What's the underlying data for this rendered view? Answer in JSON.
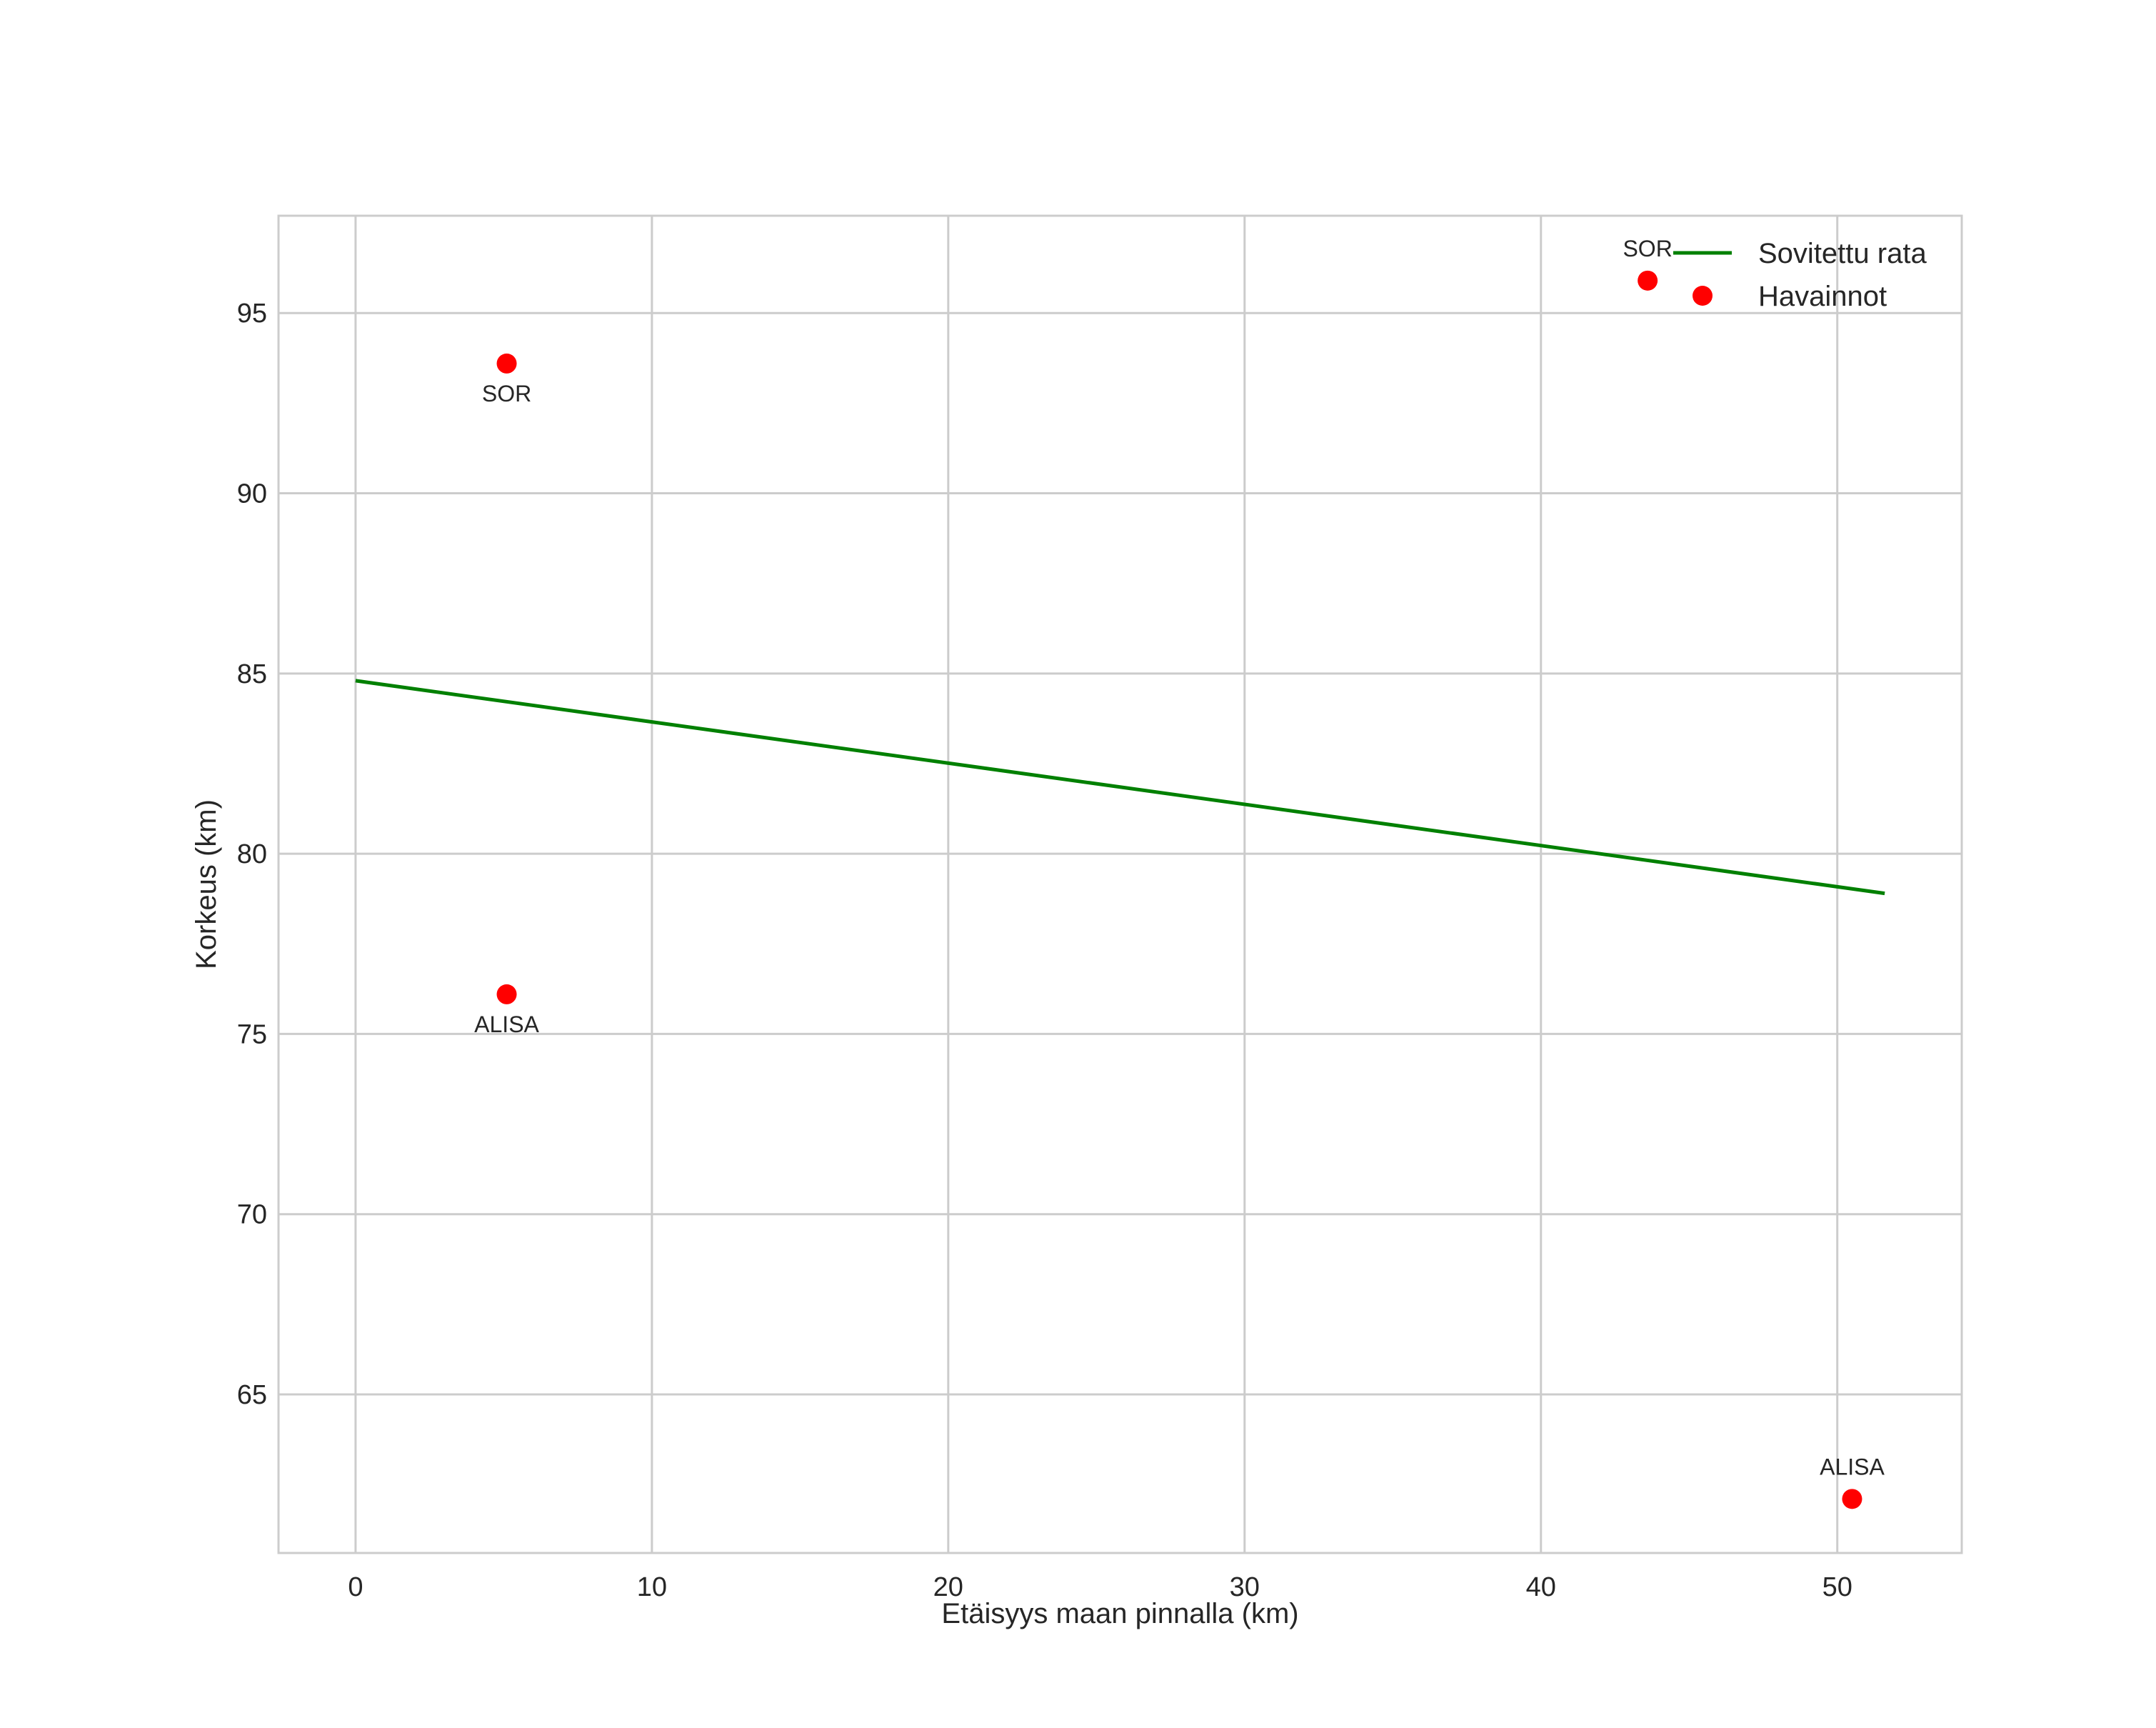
{
  "chart_data": {
    "type": "scatter",
    "title": "",
    "xlabel": "Etäisyys maan pinnalla (km)",
    "ylabel": "Korkeus (km)",
    "xlim": [
      -2.6,
      54.2
    ],
    "ylim": [
      60.6,
      97.7
    ],
    "x_ticks": [
      0,
      10,
      20,
      30,
      40,
      50
    ],
    "y_ticks": [
      65,
      70,
      75,
      80,
      85,
      90,
      95
    ],
    "grid": true,
    "legend_position": "upper-right",
    "series": [
      {
        "name": "Sovitettu rata",
        "kind": "line",
        "color": "#008000",
        "x": [
          0,
          51.6
        ],
        "y": [
          84.8,
          78.9
        ]
      },
      {
        "name": "Havainnot",
        "kind": "scatter",
        "color": "#ff0000",
        "points": [
          {
            "x": 5.1,
            "y": 93.6,
            "label": "SOR",
            "label_position": "below"
          },
          {
            "x": 5.1,
            "y": 76.1,
            "label": "ALISA",
            "label_position": "below"
          },
          {
            "x": 43.6,
            "y": 95.9,
            "label": "SOR",
            "label_position": "above"
          },
          {
            "x": 50.5,
            "y": 62.1,
            "label": "ALISA",
            "label_position": "above"
          }
        ]
      }
    ],
    "legend": [
      {
        "label": "Sovitettu rata",
        "marker": "line",
        "color": "#008000"
      },
      {
        "label": "Havainnot",
        "marker": "dot",
        "color": "#ff0000"
      }
    ]
  }
}
